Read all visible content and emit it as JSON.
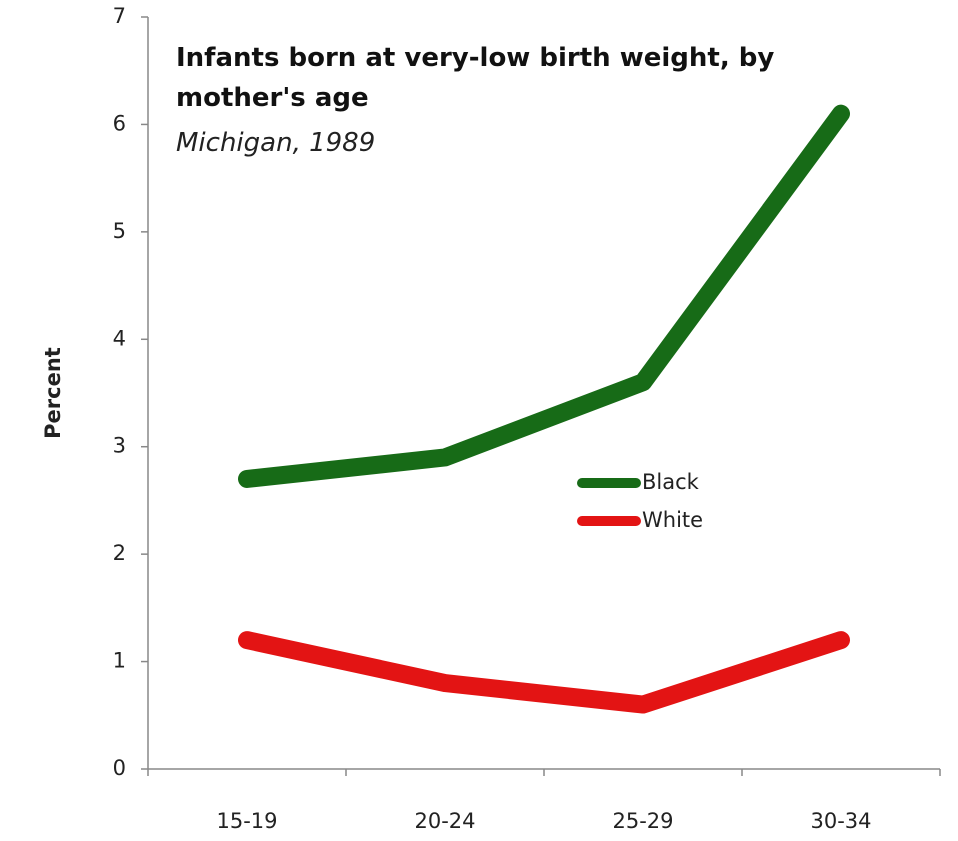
{
  "chart_data": {
    "type": "line",
    "title": "Infants born at very-low birth weight, by mother's age",
    "subtitle": "Michigan, 1989",
    "y_label": "Percent",
    "categories": [
      "15-19",
      "20-24",
      "25-29",
      "30-34"
    ],
    "series": [
      {
        "name": "Black",
        "color": "#176b17",
        "values": [
          2.7,
          2.9,
          3.6,
          6.1
        ]
      },
      {
        "name": "White",
        "color": "#e31414",
        "values": [
          1.2,
          0.8,
          0.6,
          1.2
        ]
      }
    ],
    "ylim": [
      0,
      7
    ],
    "yticks": [
      0,
      1,
      2,
      3,
      4,
      5,
      6,
      7
    ],
    "grid": false
  }
}
